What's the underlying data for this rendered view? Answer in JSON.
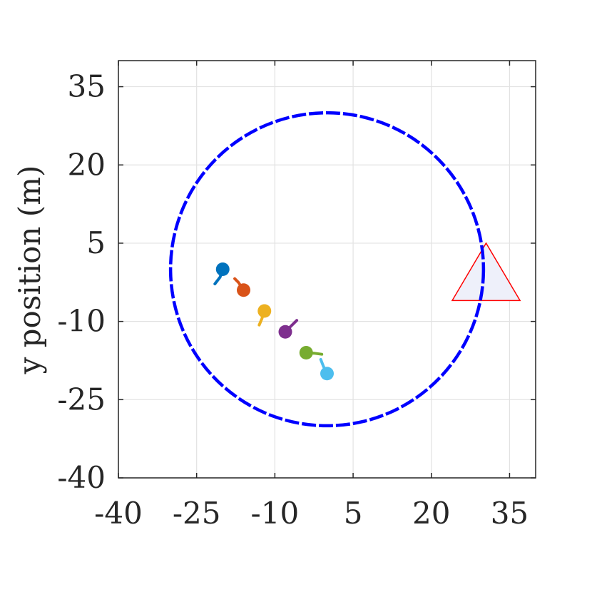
{
  "chart_data": {
    "type": "scatter",
    "title": "",
    "xlabel": "",
    "ylabel": "y position (m)",
    "xlim": [
      -40,
      40
    ],
    "ylim": [
      -40,
      40
    ],
    "xticks": [
      -40,
      -25,
      -10,
      5,
      20,
      35
    ],
    "yticks": [
      -40,
      -25,
      -10,
      5,
      20,
      35
    ],
    "xtick_labels": [
      "-40",
      "-25",
      "-10",
      "5",
      "20",
      "35"
    ],
    "ytick_labels": [
      "-40",
      "-25",
      "-10",
      "5",
      "20",
      "35"
    ],
    "grid": true,
    "circle": {
      "center": [
        0,
        0
      ],
      "radius": 30,
      "color": "#0000ff",
      "style": "dashed"
    },
    "triangle": {
      "vertices": [
        [
          30.5,
          5
        ],
        [
          24,
          -6
        ],
        [
          37,
          -6
        ]
      ],
      "edge_color": "#ff0000",
      "fill_color": "#eef0fa"
    },
    "agents": [
      {
        "x": -20,
        "y": 0,
        "color": "#0072bd",
        "tail": [
          [
            -20.5,
            -1.5
          ],
          [
            -21.5,
            -2.8
          ]
        ]
      },
      {
        "x": -16,
        "y": -4,
        "color": "#d95319",
        "tail": [
          [
            -17,
            -2.5
          ],
          [
            -17.7,
            -1.8
          ]
        ]
      },
      {
        "x": -12,
        "y": -8,
        "color": "#edb120",
        "tail": [
          [
            -12.5,
            -9.5
          ],
          [
            -13,
            -10.7
          ]
        ]
      },
      {
        "x": -8,
        "y": -12,
        "color": "#7e2f8e",
        "tail": [
          [
            -7,
            -11
          ],
          [
            -5.8,
            -9.8
          ]
        ]
      },
      {
        "x": -4,
        "y": -16,
        "color": "#77ac30",
        "tail": [
          [
            -2.5,
            -16.1
          ],
          [
            -1,
            -16.3
          ]
        ]
      },
      {
        "x": 0,
        "y": -20,
        "color": "#4dbeee",
        "tail": [
          [
            -0.7,
            -18.6
          ],
          [
            -1.2,
            -17.3
          ]
        ]
      }
    ]
  }
}
